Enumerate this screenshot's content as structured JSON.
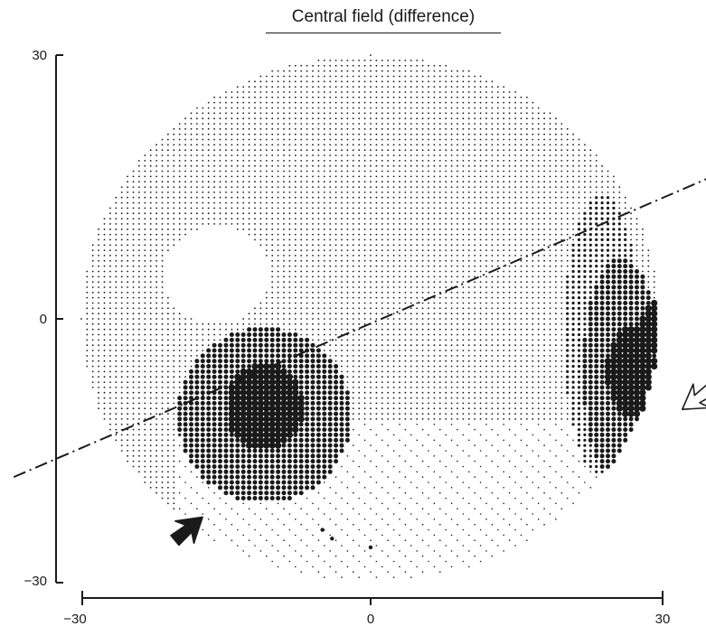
{
  "chart_data": {
    "type": "scatter",
    "title": "Central field (difference)",
    "xlabel": "",
    "ylabel": "",
    "xlim": [
      -30,
      30
    ],
    "ylim": [
      -30,
      30
    ],
    "x_ticks": [
      "−30",
      "0",
      "30"
    ],
    "y_ticks": [
      "30",
      "0",
      "−30"
    ],
    "field_radius": 30,
    "grid_spacing": 0.6,
    "density_levels": [
      0,
      1,
      2,
      3,
      4
    ],
    "blind_spot": {
      "cx": -16,
      "cy": 5,
      "r": 5.5
    },
    "defect_regions": [
      {
        "cx": -11,
        "cy": -10,
        "rx": 4,
        "ry": 5,
        "level": 4
      },
      {
        "cx": -11,
        "cy": -11,
        "rx": 9,
        "ry": 10,
        "level": 3
      },
      {
        "cx": -17,
        "cy": -12,
        "rx": 3,
        "ry": 4,
        "level": 2
      },
      {
        "cx": 27,
        "cy": -6,
        "rx": 2.5,
        "ry": 5,
        "level": 4
      },
      {
        "cx": 26,
        "cy": -6,
        "rx": 4,
        "ry": 13,
        "level": 3
      },
      {
        "cx": 24,
        "cy": -2,
        "rx": 4,
        "ry": 16,
        "level": 2
      },
      {
        "cx": 29.5,
        "cy": -1,
        "rx": 1.5,
        "ry": 3,
        "level": 4
      }
    ],
    "isolated_points": [
      {
        "x": -5,
        "y": -24
      },
      {
        "x": -4,
        "y": -25
      },
      {
        "x": 0,
        "y": -26
      }
    ],
    "reference_line": {
      "x1": -37,
      "y1": -18,
      "x2": 35,
      "y2": 16,
      "style": "dash-dot"
    },
    "arrows": [
      {
        "x": -19,
        "y": -24,
        "pointing": "up-right",
        "filled": true
      },
      {
        "x": 34,
        "y": -9,
        "pointing": "down-left",
        "filled": false
      }
    ]
  }
}
